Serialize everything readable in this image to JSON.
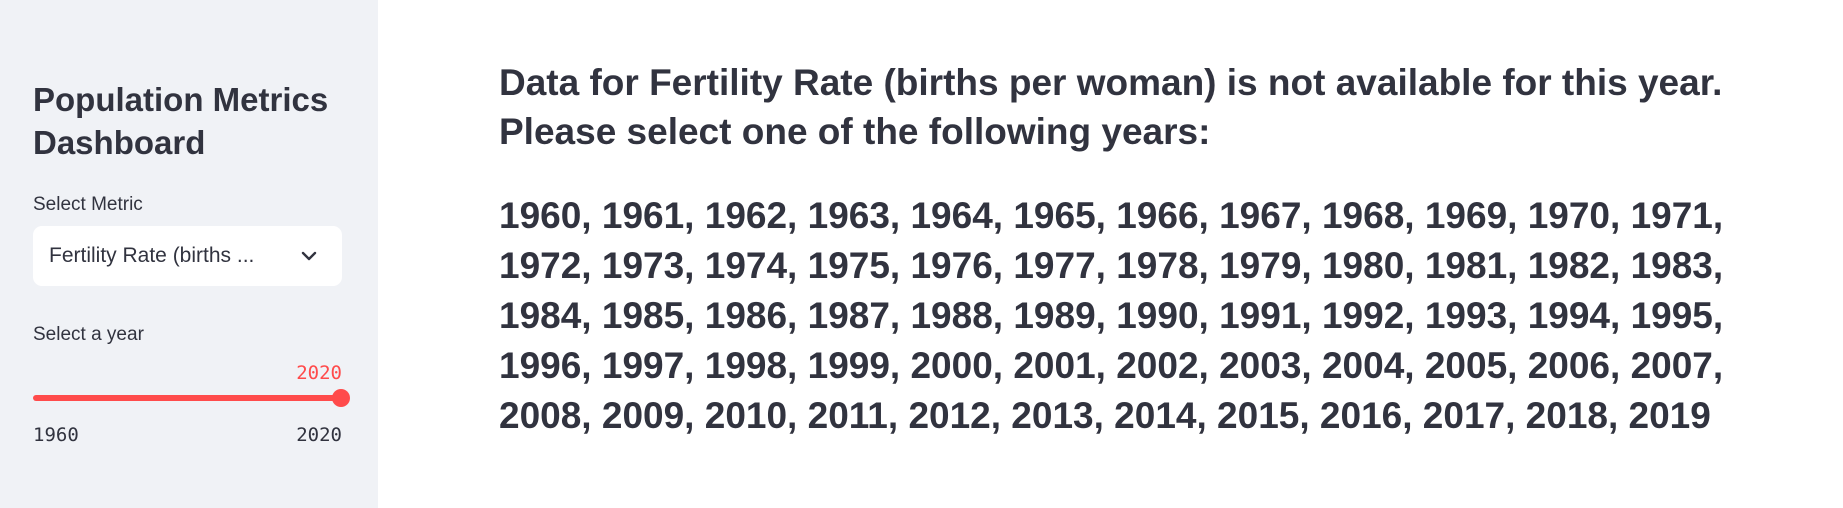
{
  "sidebar": {
    "title": "Population Metrics Dashboard",
    "metric_label": "Select Metric",
    "metric_value": "Fertility Rate (births ...",
    "year_label": "Select a year",
    "slider": {
      "value": "2020",
      "min_label": "1960",
      "max_label": "2020",
      "min": 1960,
      "max": 2020,
      "current": 2020
    }
  },
  "main": {
    "message_line1": "Data for Fertility Rate (births per woman) is not available for this year.",
    "message_line2": "Please select one of the following years:",
    "years": [
      "1960, 1961, 1962, 1963, 1964, 1965, 1966, 1967, 1968, 1969, 1970, 1971,",
      "1972, 1973, 1974, 1975, 1976, 1977, 1978, 1979, 1980, 1981, 1982, 1983,",
      "1984, 1985, 1986, 1987, 1988, 1989, 1990, 1991, 1992, 1993, 1994, 1995,",
      "1996, 1997, 1998, 1999, 2000, 2001, 2002, 2003, 2004, 2005, 2006, 2007,",
      "2008, 2009, 2010, 2011, 2012, 2013, 2014, 2015, 2016, 2017, 2018, 2019"
    ]
  },
  "colors": {
    "sidebar_bg": "#f0f2f6",
    "accent": "#ff4b4b",
    "text": "#31333f"
  },
  "icons": {
    "select": "chevron-down-icon"
  }
}
